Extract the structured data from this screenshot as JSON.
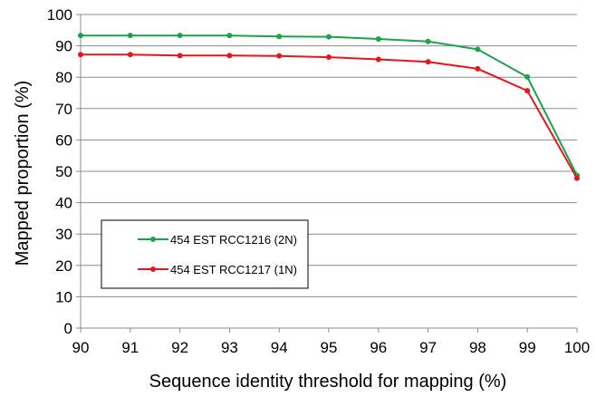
{
  "chart_data": {
    "type": "line",
    "title": "",
    "xlabel": "Sequence identity threshold for mapping (%)",
    "ylabel": "Mapped proportion (%)",
    "x": [
      90,
      91,
      92,
      93,
      94,
      95,
      96,
      97,
      98,
      99,
      100
    ],
    "xlim": [
      90,
      100
    ],
    "ylim": [
      0,
      100
    ],
    "yticks": [
      0,
      10,
      20,
      30,
      40,
      50,
      60,
      70,
      80,
      90,
      100
    ],
    "grid": "horizontal",
    "legend_position": "lower-left",
    "series": [
      {
        "name": "454 EST RCC1216  (2N)",
        "color": "#1aa34a",
        "values": [
          93.3,
          93.3,
          93.3,
          93.3,
          93.0,
          92.9,
          92.2,
          91.4,
          88.9,
          80.1,
          48.7
        ]
      },
      {
        "name": "454 EST RCC1217  (1N)",
        "color": "#e8151b",
        "values": [
          87.2,
          87.2,
          86.9,
          86.9,
          86.8,
          86.4,
          85.7,
          84.9,
          82.7,
          75.7,
          47.8
        ]
      }
    ]
  }
}
